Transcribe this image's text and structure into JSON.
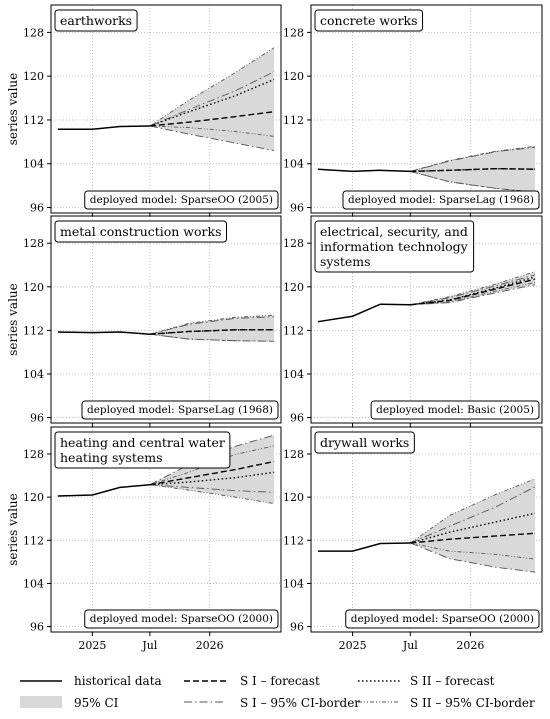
{
  "figure": {
    "ylabel": "series value",
    "yticks": [
      96,
      104,
      112,
      120,
      128
    ],
    "ylim": [
      95,
      133
    ],
    "xlim": [
      0,
      1
    ],
    "xtick_labels": [
      "2025",
      "Jul",
      "2026"
    ],
    "xtick_pos": [
      0.18,
      0.43,
      0.69
    ]
  },
  "chart_data": [
    {
      "type": "line",
      "title": "earthworks",
      "model_label": "deployed model: SparseOO (2005)",
      "hist": {
        "x": [
          0.03,
          0.18,
          0.3,
          0.43
        ],
        "y": [
          110.3,
          110.3,
          110.8,
          110.9
        ]
      },
      "forecast": {
        "x": [
          0.43,
          0.6,
          0.8,
          0.97
        ],
        "s1": [
          110.9,
          111.6,
          112.6,
          113.5
        ],
        "s2": [
          110.9,
          113.5,
          116.4,
          119.4
        ],
        "ci1_low": [
          110.9,
          109.4,
          107.8,
          106.4
        ],
        "ci1_high": [
          110.9,
          113.9,
          117.3,
          120.8
        ],
        "ci2_low": [
          110.9,
          110.6,
          109.9,
          109.0
        ],
        "ci2_high": [
          110.9,
          115.6,
          120.6,
          125.2
        ]
      }
    },
    {
      "type": "line",
      "title": "concrete works",
      "model_label": "deployed model: SparseLag (1968)",
      "hist": {
        "x": [
          0.03,
          0.18,
          0.3,
          0.43
        ],
        "y": [
          103.0,
          102.6,
          102.8,
          102.6
        ]
      },
      "forecast": {
        "x": [
          0.43,
          0.6,
          0.8,
          0.97
        ],
        "s1": [
          102.6,
          102.8,
          103.1,
          103.0
        ],
        "s2": [
          102.6,
          102.8,
          103.1,
          103.0
        ],
        "ci1_low": [
          102.6,
          100.7,
          99.5,
          98.8
        ],
        "ci1_high": [
          102.6,
          104.5,
          106.2,
          107.0
        ],
        "ci2_low": [
          102.6,
          100.7,
          99.5,
          98.8
        ],
        "ci2_high": [
          102.6,
          104.6,
          106.3,
          107.2
        ]
      }
    },
    {
      "type": "line",
      "title": "metal construction works",
      "model_label": "deployed model: SparseLag (1968)",
      "hist": {
        "x": [
          0.03,
          0.18,
          0.3,
          0.43
        ],
        "y": [
          111.7,
          111.6,
          111.7,
          111.3
        ]
      },
      "forecast": {
        "x": [
          0.43,
          0.6,
          0.8,
          0.97
        ],
        "s1": [
          111.3,
          111.8,
          112.1,
          112.1
        ],
        "s2": [
          111.3,
          111.8,
          112.1,
          112.1
        ],
        "ci1_low": [
          111.3,
          110.4,
          110.1,
          110.0
        ],
        "ci1_high": [
          111.3,
          113.1,
          114.2,
          114.5
        ],
        "ci2_low": [
          111.3,
          110.4,
          110.1,
          110.0
        ],
        "ci2_high": [
          111.3,
          113.3,
          114.4,
          114.8
        ]
      }
    },
    {
      "type": "line",
      "title": "electrical, security, and information technology systems",
      "model_label": "deployed model: Basic (2005)",
      "hist": {
        "x": [
          0.03,
          0.18,
          0.3,
          0.43
        ],
        "y": [
          113.6,
          114.6,
          116.8,
          116.7
        ]
      },
      "forecast": {
        "x": [
          0.43,
          0.6,
          0.8,
          0.97
        ],
        "s1": [
          116.7,
          117.5,
          119.6,
          121.4
        ],
        "s2": [
          116.7,
          117.6,
          119.8,
          121.8
        ],
        "ci1_low": [
          116.7,
          117.1,
          118.9,
          120.4
        ],
        "ci1_high": [
          116.7,
          118.0,
          120.2,
          122.2
        ],
        "ci2_low": [
          116.7,
          117.2,
          119.2,
          120.8
        ],
        "ci2_high": [
          116.7,
          118.2,
          120.5,
          122.8
        ]
      }
    },
    {
      "type": "line",
      "title": "heating and central water heating systems",
      "model_label": "deployed model: SparseOO (2000)",
      "hist": {
        "x": [
          0.03,
          0.18,
          0.3,
          0.43
        ],
        "y": [
          120.2,
          120.4,
          121.8,
          122.3
        ]
      },
      "forecast": {
        "x": [
          0.43,
          0.6,
          0.8,
          0.97
        ],
        "s1": [
          122.3,
          123.6,
          125.1,
          126.6
        ],
        "s2": [
          122.3,
          122.8,
          123.6,
          124.6
        ],
        "ci1_low": [
          122.3,
          121.8,
          121.2,
          120.9
        ],
        "ci1_high": [
          122.3,
          126.0,
          129.4,
          131.5
        ],
        "ci2_low": [
          122.3,
          121.3,
          120.0,
          118.8
        ],
        "ci2_high": [
          122.3,
          124.6,
          127.9,
          129.5
        ]
      }
    },
    {
      "type": "line",
      "title": "drywall works",
      "model_label": "deployed model: SparseOO (2000)",
      "hist": {
        "x": [
          0.03,
          0.18,
          0.3,
          0.43
        ],
        "y": [
          110.0,
          110.0,
          111.4,
          111.5
        ]
      },
      "forecast": {
        "x": [
          0.43,
          0.6,
          0.8,
          0.97
        ],
        "s1": [
          111.5,
          112.2,
          112.8,
          113.3
        ],
        "s2": [
          111.5,
          113.5,
          115.4,
          117.0
        ],
        "ci1_low": [
          111.5,
          108.6,
          107.0,
          106.1
        ],
        "ci1_high": [
          111.5,
          114.6,
          118.2,
          121.9
        ],
        "ci2_low": [
          111.5,
          110.0,
          109.4,
          108.5
        ],
        "ci2_high": [
          111.5,
          116.6,
          120.5,
          123.4
        ]
      }
    }
  ],
  "legend": {
    "historical": "historical data",
    "ci": "95% CI",
    "s1_forecast": "S I – forecast",
    "s1_ci": "S I – 95% CI-border",
    "s2_forecast": "S II – forecast",
    "s2_ci": "S II – 95% CI-border"
  },
  "colors": {
    "ci_fill": "#d9d9d9",
    "line": "#000000",
    "ci_border": "#555555",
    "grid": "#b0b0b0"
  }
}
